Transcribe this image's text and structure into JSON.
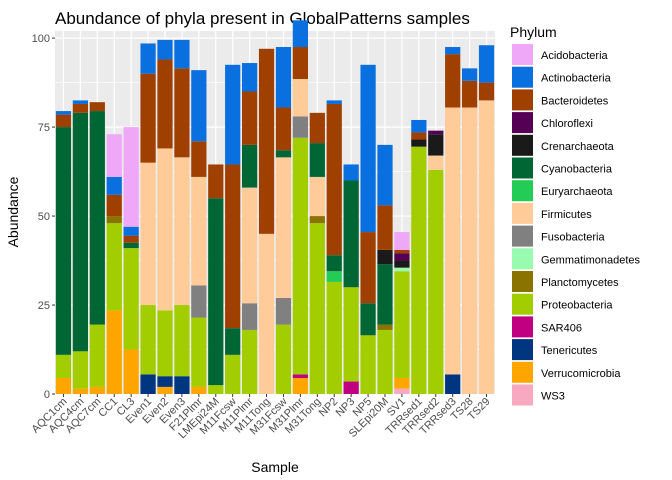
{
  "chart_data": {
    "type": "bar",
    "stacked": true,
    "title": "Abundance of phyla present in GlobalPatterns samples",
    "xlabel": "Sample",
    "ylabel": "Abundance",
    "ylim": [
      0,
      102
    ],
    "yticks": [
      0,
      25,
      50,
      75,
      100
    ],
    "grid": true,
    "legend_position": "right",
    "legend_title": "Phylum",
    "categories": [
      "AQC1cm",
      "AQC4cm",
      "AQC7cm",
      "CC1",
      "CL3",
      "Even1",
      "Even2",
      "Even3",
      "F21Plmr",
      "LMEpi24M",
      "M11Fcsw",
      "M11Plmr",
      "M11Tong",
      "M31Fcsw",
      "M31Plmr",
      "M31Tong",
      "NP2",
      "NP3",
      "NP5",
      "SLEpi20M",
      "SV1",
      "TRRsed1",
      "TRRsed2",
      "TRRsed3",
      "TS28",
      "TS29"
    ],
    "series": [
      {
        "name": "WS3",
        "color": "#F8A8C0",
        "values": [
          0,
          0,
          0,
          0,
          0,
          0,
          0,
          0,
          0,
          0,
          0,
          0,
          0,
          0,
          0,
          0,
          0,
          0,
          0,
          0,
          1.5,
          0,
          0,
          0,
          0,
          0
        ]
      },
      {
        "name": "Verrucomicrobia",
        "color": "#FFA500",
        "values": [
          4.5,
          1.5,
          2,
          23.5,
          12.5,
          0,
          2,
          0,
          2,
          0,
          0,
          0,
          0,
          0,
          4.5,
          0,
          0,
          0,
          0,
          0,
          3,
          0,
          0,
          0,
          0,
          0
        ]
      },
      {
        "name": "Tenericutes",
        "color": "#003580",
        "values": [
          0,
          0,
          0,
          0,
          0,
          5.5,
          3,
          5,
          0,
          0,
          0,
          0,
          0,
          0,
          0,
          0,
          0,
          0,
          0,
          0,
          0,
          0,
          0,
          5.5,
          0,
          0
        ]
      },
      {
        "name": "SAR406",
        "color": "#C00080",
        "values": [
          0,
          0,
          0,
          0,
          0,
          0,
          0,
          0,
          0,
          0,
          0,
          0,
          0,
          0,
          1,
          0,
          0,
          3.5,
          0,
          0,
          0,
          0,
          0,
          0,
          0,
          0
        ]
      },
      {
        "name": "Proteobacteria",
        "color": "#A2CD00",
        "values": [
          6.5,
          10.5,
          17.5,
          24.5,
          28.5,
          19.5,
          18.5,
          20,
          19.5,
          2.5,
          11,
          18,
          0,
          19.5,
          66.5,
          48,
          31.5,
          26.5,
          16.5,
          18,
          30,
          69.5,
          63,
          0,
          0,
          0
        ]
      },
      {
        "name": "Planctomycetes",
        "color": "#8B7300",
        "values": [
          0,
          0,
          0,
          2,
          0,
          0,
          0,
          0,
          0,
          0,
          0,
          0,
          0,
          0,
          0,
          2,
          0,
          0,
          0,
          1.5,
          0,
          0,
          0,
          0,
          0,
          0
        ]
      },
      {
        "name": "Gemmatimonadetes",
        "color": "#98FBB0",
        "values": [
          0,
          0,
          0,
          0,
          0,
          0,
          0,
          0,
          0,
          0,
          0,
          0,
          0,
          0,
          0,
          0,
          0,
          0,
          0,
          0,
          1,
          0,
          0,
          0,
          0,
          0
        ]
      },
      {
        "name": "Fusobacteria",
        "color": "#808080",
        "values": [
          0,
          0,
          0,
          0,
          0,
          0,
          0,
          0,
          9,
          0,
          0,
          7.5,
          0,
          7.5,
          6,
          0,
          0,
          0,
          0,
          0,
          0,
          0,
          0,
          0,
          0,
          0
        ]
      },
      {
        "name": "Firmicutes",
        "color": "#FFCC99",
        "values": [
          0,
          0,
          0,
          0,
          0,
          40,
          45.5,
          41.5,
          30.5,
          0,
          0,
          32.5,
          45,
          39.5,
          10.5,
          11,
          0,
          0,
          0,
          0,
          0,
          0,
          4,
          75,
          80.5,
          82.5
        ]
      },
      {
        "name": "Euryarchaeota",
        "color": "#22CC55",
        "values": [
          0,
          0,
          0,
          0,
          0,
          0,
          0,
          0,
          0,
          0,
          0,
          0,
          0,
          0,
          0,
          0,
          3,
          0,
          0,
          0,
          0,
          0,
          0,
          0,
          0,
          0
        ]
      },
      {
        "name": "Cyanobacteria",
        "color": "#006633",
        "values": [
          64,
          67,
          60,
          0,
          1.5,
          0,
          0,
          0,
          0,
          52.5,
          7.5,
          12,
          0,
          2,
          0,
          9.5,
          4.5,
          30,
          9,
          17,
          0,
          0,
          0,
          0,
          0,
          0
        ]
      },
      {
        "name": "Crenarchaeota",
        "color": "#1A1A1A",
        "values": [
          0,
          0,
          0,
          0,
          0,
          0,
          0,
          0,
          0,
          0,
          0,
          0,
          0,
          0,
          0,
          0,
          0,
          0,
          0,
          4,
          2,
          2,
          6,
          0,
          0,
          0
        ]
      },
      {
        "name": "Chloroflexi",
        "color": "#550055",
        "values": [
          0,
          0,
          0,
          0,
          0,
          0,
          0,
          0,
          0,
          0,
          0,
          0,
          0,
          0,
          0,
          0,
          0,
          0,
          0,
          0,
          2,
          0,
          1,
          0,
          0,
          0
        ]
      },
      {
        "name": "Bacteroidetes",
        "color": "#A04000",
        "values": [
          3.5,
          2.5,
          2.5,
          6,
          2,
          25,
          25,
          25,
          10,
          9.5,
          46,
          15,
          52,
          12,
          9,
          8.5,
          42.5,
          0,
          20,
          12.5,
          1,
          2,
          0,
          15,
          7.5,
          5
        ]
      },
      {
        "name": "Actinobacteria",
        "color": "#0A70E0",
        "values": [
          1,
          1,
          0,
          5,
          2.5,
          8.5,
          5.5,
          8,
          20,
          0,
          28,
          8,
          0,
          17,
          7.5,
          0,
          1,
          4.5,
          47,
          17,
          0,
          3.5,
          0,
          2,
          3.5,
          10.5
        ]
      },
      {
        "name": "Acidobacteria",
        "color": "#EFA8F8",
        "values": [
          0,
          0,
          0,
          12,
          28,
          0,
          0,
          0,
          0,
          0,
          0,
          0,
          0,
          0,
          0,
          0,
          0,
          0,
          0,
          0,
          5,
          0,
          0,
          0,
          0,
          0
        ]
      }
    ],
    "legend_order": [
      "Acidobacteria",
      "Actinobacteria",
      "Bacteroidetes",
      "Chloroflexi",
      "Crenarchaeota",
      "Cyanobacteria",
      "Euryarchaeota",
      "Firmicutes",
      "Fusobacteria",
      "Gemmatimonadetes",
      "Planctomycetes",
      "Proteobacteria",
      "SAR406",
      "Tenericutes",
      "Verrucomicrobia",
      "WS3"
    ]
  }
}
